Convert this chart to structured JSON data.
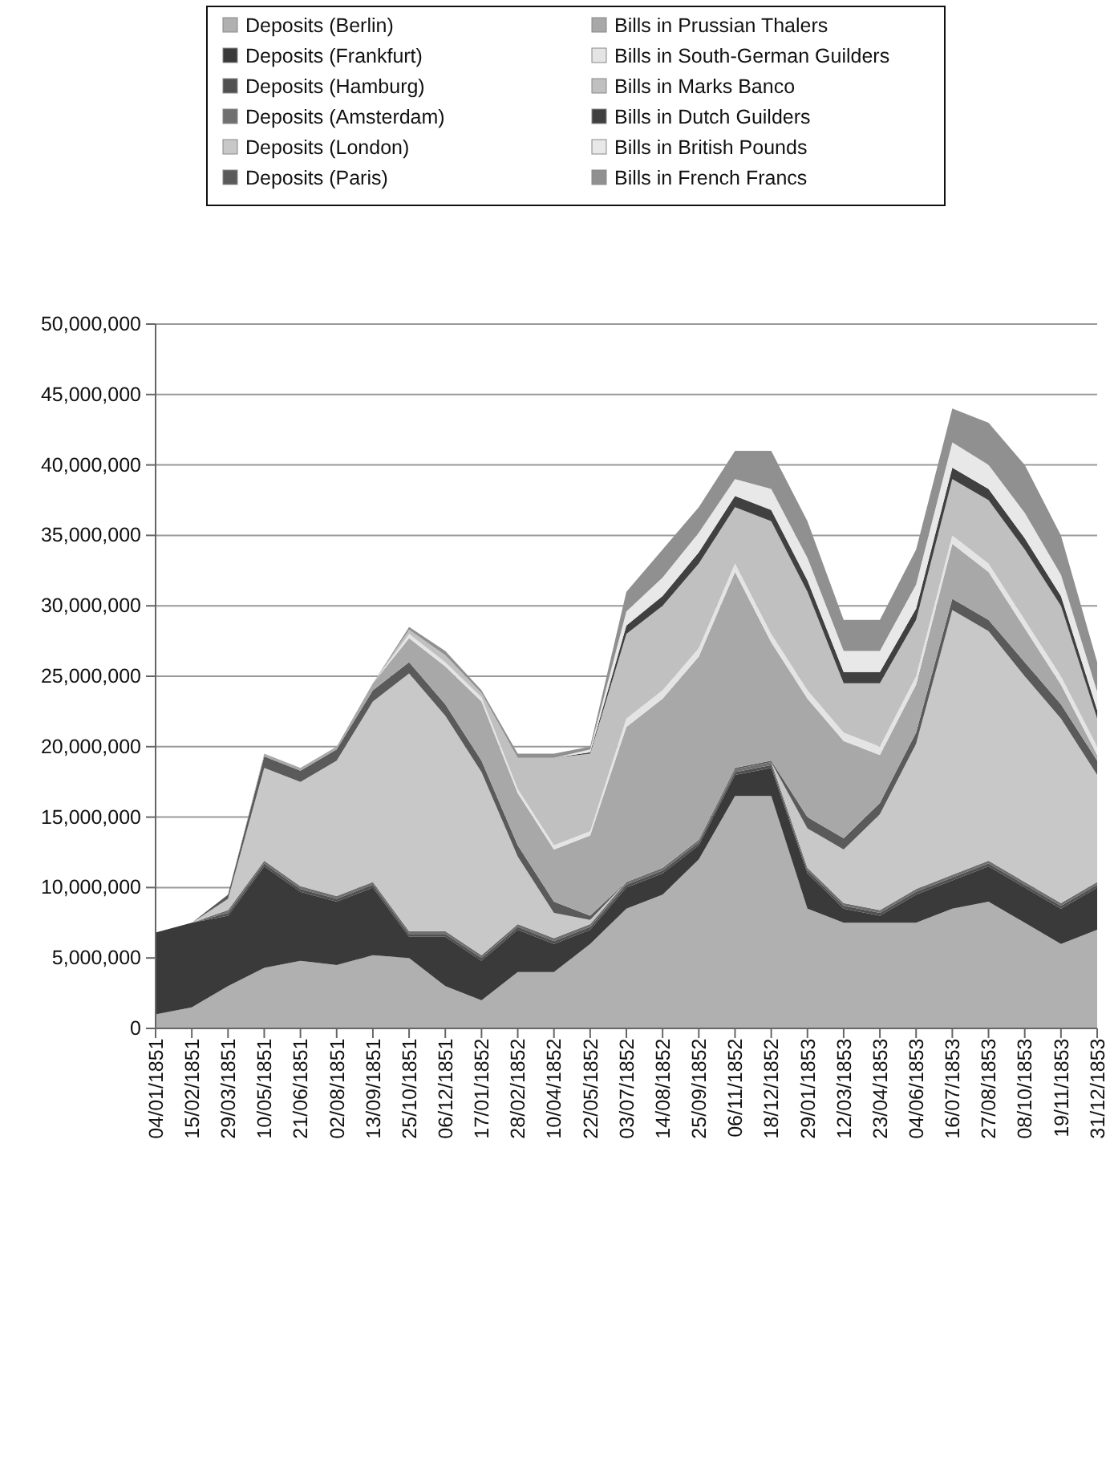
{
  "chart_data": {
    "type": "area",
    "stacked": true,
    "legend": "top",
    "grid": "y",
    "x": [
      "1851-01-04",
      "1851-02-15",
      "1851-03-29",
      "1851-05-10",
      "1851-06-21",
      "1851-08-02",
      "1851-09-13",
      "1851-10-25",
      "1851-12-06",
      "1852-01-17",
      "1852-02-28",
      "1852-04-10",
      "1852-05-22",
      "1852-07-03",
      "1852-08-14",
      "1852-09-25",
      "1852-11-06",
      "1852-12-18",
      "1853-01-29",
      "1853-03-12",
      "1853-04-23",
      "1853-06-04",
      "1853-07-16",
      "1853-08-27",
      "1853-10-08",
      "1853-11-19",
      "1853-12-31"
    ],
    "xlim": [
      "1851-01-04",
      "1853-12-31"
    ],
    "xticks": [
      {
        "value": "1851-01-04",
        "label": "04/01/1851"
      },
      {
        "value": "1851-02-15",
        "label": "15/02/1851"
      },
      {
        "value": "1851-03-29",
        "label": "29/03/1851"
      },
      {
        "value": "1851-05-10",
        "label": "10/05/1851"
      },
      {
        "value": "1851-06-21",
        "label": "21/06/1851"
      },
      {
        "value": "1851-08-02",
        "label": "02/08/1851"
      },
      {
        "value": "1851-09-13",
        "label": "13/09/1851"
      },
      {
        "value": "1851-10-25",
        "label": "25/10/1851"
      },
      {
        "value": "1851-12-06",
        "label": "06/12/1851"
      },
      {
        "value": "1852-01-17",
        "label": "17/01/1852"
      },
      {
        "value": "1852-02-28",
        "label": "28/02/1852"
      },
      {
        "value": "1852-04-10",
        "label": "10/04/1852"
      },
      {
        "value": "1852-05-22",
        "label": "22/05/1852"
      },
      {
        "value": "1852-07-03",
        "label": "03/07/1852"
      },
      {
        "value": "1852-08-14",
        "label": "14/08/1852"
      },
      {
        "value": "1852-09-25",
        "label": "25/09/1852"
      },
      {
        "value": "1852-11-06",
        "label": "06/11/1852"
      },
      {
        "value": "1852-12-18",
        "label": "18/12/1852"
      },
      {
        "value": "1853-01-29",
        "label": "29/01/1853"
      },
      {
        "value": "1853-03-12",
        "label": "12/03/1853"
      },
      {
        "value": "1853-04-23",
        "label": "23/04/1853"
      },
      {
        "value": "1853-06-04",
        "label": "04/06/1853"
      },
      {
        "value": "1853-07-16",
        "label": "16/07/1853"
      },
      {
        "value": "1853-08-27",
        "label": "27/08/1853"
      },
      {
        "value": "1853-10-08",
        "label": "08/10/1853"
      },
      {
        "value": "1853-11-19",
        "label": "19/11/1853"
      },
      {
        "value": "1853-12-31",
        "label": "31/12/1853"
      }
    ],
    "ylim": [
      0,
      50000000
    ],
    "yticks": [
      0,
      {
        "value": 5000000,
        "label": "5,000,000"
      },
      {
        "value": 10000000,
        "label": "10,000,000"
      },
      {
        "value": 15000000,
        "label": "15,000,000"
      },
      {
        "value": 20000000,
        "label": "20,000,000"
      },
      {
        "value": 25000000,
        "label": "25,000,000"
      },
      {
        "value": 30000000,
        "label": "30,000,000"
      },
      {
        "value": 35000000,
        "label": "35,000,000"
      },
      {
        "value": 40000000,
        "label": "40,000,000"
      },
      {
        "value": 45000000,
        "label": "45,000,000"
      },
      {
        "value": 50000000,
        "label": "50,000,000"
      }
    ],
    "series": [
      {
        "name": "Deposits (Berlin)",
        "color": "#b0b0b0",
        "values": [
          1000000,
          1500000,
          3000000,
          4300000,
          4800000,
          4500000,
          5200000,
          5000000,
          3000000,
          2000000,
          4000000,
          4000000,
          6000000,
          8500000,
          9500000,
          12000000,
          16500000,
          16500000,
          8500000,
          7500000,
          7500000,
          7500000,
          8500000,
          9000000,
          7500000,
          6000000,
          7000000
        ]
      },
      {
        "name": "Deposits (Frankfurt)",
        "color": "#3a3a3a",
        "values": [
          5800000,
          6000000,
          5000000,
          7200000,
          4900000,
          4500000,
          4800000,
          1500000,
          3500000,
          2800000,
          3000000,
          2000000,
          1000000,
          1500000,
          1500000,
          1000000,
          1500000,
          2000000,
          2500000,
          1000000,
          500000,
          2000000,
          2000000,
          2500000,
          2500000,
          2500000,
          3000000
        ]
      },
      {
        "name": "Deposits (Hamburg)",
        "color": "#505050",
        "values": [
          0,
          0,
          200000,
          200000,
          200000,
          200000,
          200000,
          200000,
          200000,
          200000,
          200000,
          200000,
          200000,
          200000,
          200000,
          200000,
          200000,
          200000,
          200000,
          200000,
          200000,
          200000,
          200000,
          200000,
          200000,
          200000,
          200000
        ]
      },
      {
        "name": "Deposits (Amsterdam)",
        "color": "#707070",
        "values": [
          0,
          0,
          200000,
          200000,
          200000,
          200000,
          200000,
          200000,
          200000,
          200000,
          200000,
          200000,
          200000,
          200000,
          200000,
          200000,
          200000,
          200000,
          200000,
          200000,
          200000,
          200000,
          200000,
          200000,
          200000,
          200000,
          200000
        ]
      },
      {
        "name": "Deposits (London)",
        "color": "#c8c8c8",
        "values": [
          0,
          0,
          800000,
          6600000,
          7400000,
          9600000,
          12800000,
          18300000,
          15300000,
          13000000,
          4800000,
          1800000,
          300000,
          0,
          0,
          0,
          0,
          0,
          2800000,
          3800000,
          6800000,
          10300000,
          18800000,
          16300000,
          14600000,
          13100000,
          7600000
        ]
      },
      {
        "name": "Deposits (Paris)",
        "color": "#5a5a5a",
        "values": [
          0,
          0,
          300000,
          800000,
          800000,
          800000,
          800000,
          800000,
          800000,
          800000,
          800000,
          800000,
          300000,
          0,
          0,
          0,
          100000,
          100000,
          800000,
          800000,
          800000,
          800000,
          800000,
          800000,
          1000000,
          1000000,
          1000000
        ]
      },
      {
        "name": "Bills in Prussian Thalers",
        "color": "#a8a8a8",
        "values": [
          0,
          0,
          0,
          200000,
          200000,
          200000,
          500000,
          1700000,
          2700000,
          4200000,
          3700000,
          3700000,
          5700000,
          11000000,
          12000000,
          13000000,
          13900000,
          8400000,
          8400000,
          6900000,
          3400000,
          3400000,
          3900000,
          3400000,
          2400000,
          1400000,
          400000
        ]
      },
      {
        "name": "Bills in South-German Guilders",
        "color": "#e4e4e4",
        "values": [
          0,
          0,
          0,
          0,
          0,
          0,
          0,
          300000,
          300000,
          300000,
          300000,
          300000,
          300000,
          600000,
          600000,
          600000,
          600000,
          600000,
          600000,
          600000,
          600000,
          600000,
          600000,
          600000,
          600000,
          600000,
          600000
        ]
      },
      {
        "name": "Bills in Marks Banco",
        "color": "#c0c0c0",
        "values": [
          0,
          0,
          0,
          0,
          0,
          0,
          0,
          300000,
          500000,
          300000,
          2200000,
          6200000,
          5500000,
          6000000,
          6000000,
          6000000,
          4000000,
          8000000,
          7000000,
          3500000,
          4500000,
          4000000,
          4000000,
          4500000,
          5000000,
          5000000,
          2000000
        ]
      },
      {
        "name": "Bills in Dutch Guilders",
        "color": "#404040",
        "values": [
          0,
          0,
          0,
          0,
          0,
          0,
          0,
          0,
          0,
          0,
          0,
          0,
          100000,
          600000,
          700000,
          800000,
          800000,
          800000,
          800000,
          800000,
          800000,
          800000,
          800000,
          800000,
          800000,
          700000,
          600000
        ]
      },
      {
        "name": "Bills in British Pounds",
        "color": "#e8e8e8",
        "values": [
          0,
          0,
          0,
          0,
          0,
          0,
          0,
          0,
          0,
          0,
          0,
          0,
          200000,
          1000000,
          1300000,
          1400000,
          1200000,
          1500000,
          1600000,
          1500000,
          1500000,
          1700000,
          1800000,
          1700000,
          1800000,
          1500000,
          1300000
        ]
      },
      {
        "name": "Bills in French Francs",
        "color": "#909090",
        "values": [
          0,
          0,
          0,
          0,
          0,
          0,
          0,
          200000,
          300000,
          200000,
          300000,
          300000,
          200000,
          1400000,
          2000000,
          1800000,
          2000000,
          2700000,
          2600000,
          2200000,
          2200000,
          2500000,
          2400000,
          3000000,
          3400000,
          2800000,
          2100000
        ]
      }
    ]
  }
}
